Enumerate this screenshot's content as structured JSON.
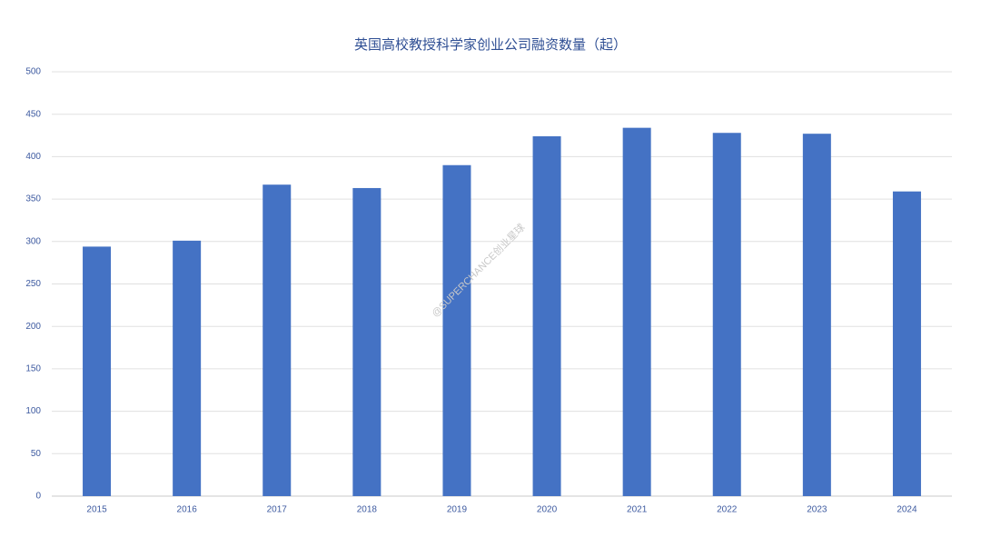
{
  "chart_data": {
    "type": "bar",
    "title": "英国高校教授科学家创业公司融资数量（起）",
    "annotation": "@SUPERCHANCE创业星球",
    "categories": [
      "2015",
      "2016",
      "2017",
      "2018",
      "2019",
      "2020",
      "2021",
      "2022",
      "2023",
      "2024"
    ],
    "values": [
      294,
      301,
      367,
      363,
      390,
      424,
      434,
      428,
      427,
      359
    ],
    "color": "#4472c4",
    "ylim": [
      0,
      500
    ],
    "yticks": [
      0,
      50,
      100,
      150,
      200,
      250,
      300,
      350,
      400,
      450,
      500
    ],
    "grid": true
  }
}
